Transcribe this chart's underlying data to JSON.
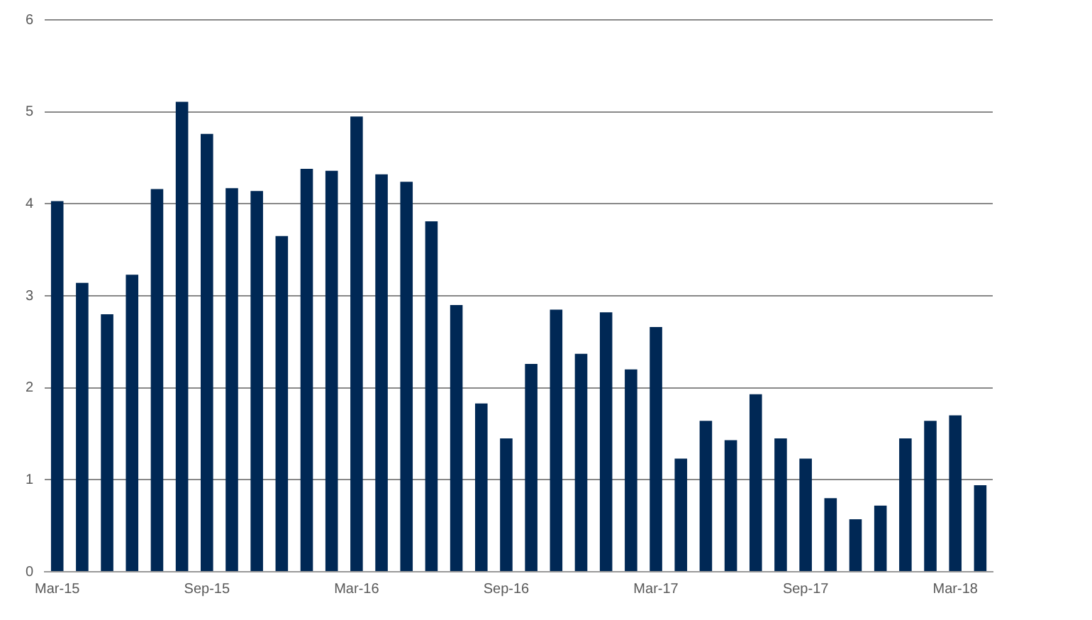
{
  "chart_data": {
    "type": "bar",
    "categories": [
      "Mar-15",
      null,
      null,
      null,
      null,
      null,
      "Sep-15",
      null,
      null,
      null,
      null,
      null,
      "Mar-16",
      null,
      null,
      null,
      null,
      null,
      "Sep-16",
      null,
      null,
      null,
      null,
      null,
      "Mar-17",
      null,
      null,
      null,
      null,
      null,
      "Sep-17",
      null,
      null,
      null,
      null,
      null,
      "Mar-18",
      null
    ],
    "values": [
      4.03,
      3.14,
      2.8,
      3.23,
      4.16,
      5.11,
      4.76,
      4.17,
      4.14,
      3.65,
      4.38,
      4.36,
      4.95,
      4.32,
      4.24,
      3.81,
      2.9,
      1.83,
      1.45,
      2.26,
      2.85,
      2.37,
      2.82,
      2.2,
      2.66,
      1.23,
      1.64,
      1.43,
      1.93,
      1.45,
      1.23,
      0.8,
      0.57,
      0.72,
      1.45,
      1.64,
      1.7,
      0.94
    ],
    "color": "#002855",
    "ylim": [
      0,
      6
    ],
    "yticks": [
      0,
      1,
      2,
      3,
      4,
      5,
      6
    ],
    "grid": "y"
  }
}
